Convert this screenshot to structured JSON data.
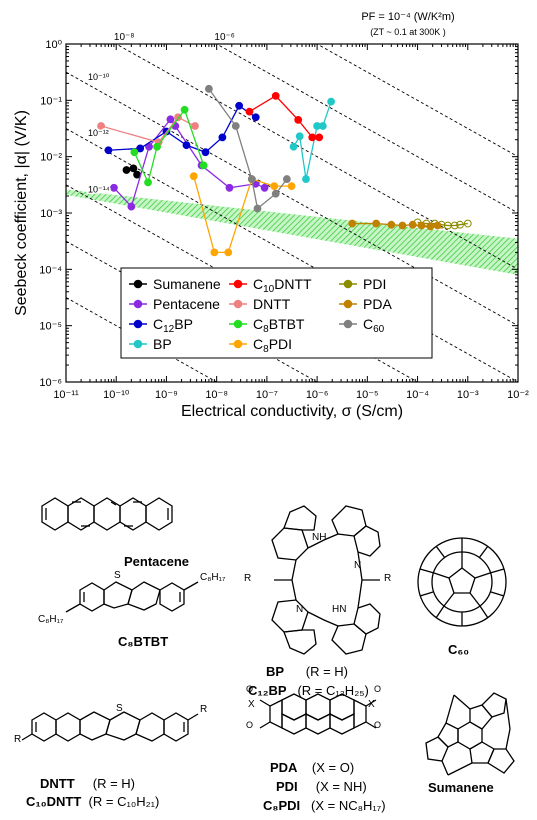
{
  "chart_data": {
    "type": "scatter",
    "xlabel": "Electrical conductivity, σ (S/cm)",
    "ylabel": "Seebeck coefficient, |α| (V/K)",
    "x_scale": "log",
    "y_scale": "log",
    "xlim": [
      1e-11,
      0.01
    ],
    "ylim": [
      1e-06,
      1
    ],
    "x_tick_labels": [
      "10⁻¹¹",
      "10⁻¹⁰",
      "10⁻⁹",
      "10⁻⁸",
      "10⁻⁷",
      "10⁻⁶",
      "10⁻⁵",
      "10⁻⁴",
      "10⁻³",
      "10⁻²"
    ],
    "y_tick_labels": [
      "10⁻⁶",
      "10⁻⁵",
      "10⁻⁴",
      "10⁻³",
      "10⁻²",
      "10⁻¹",
      "10⁰"
    ],
    "top_axis_ticks": [
      {
        "label": "10⁻⁸",
        "x": 1e-10
      },
      {
        "label": "10⁻⁶",
        "x": 1e-08
      }
    ],
    "top_annotation": {
      "line1": "PF = 10⁻⁴ (W/K²m)",
      "line2": "(ZT ~ 0.1 at 300K )"
    },
    "pf_lines": [
      {
        "label": "10⁻¹⁰",
        "pf": 1e-10
      },
      {
        "label": "10⁻¹²",
        "pf": 1e-12
      },
      {
        "label": "10⁻¹⁴",
        "pf": 1e-14
      }
    ],
    "pf_lines_unlabeled": [
      1e-08,
      1e-06,
      0.0001,
      1e-16,
      1e-18
    ],
    "shaded_band": {
      "color": "#55dd55",
      "top": [
        [
          1e-11,
          0.0026
        ],
        [
          0.01,
          0.00035
        ]
      ],
      "bottom": [
        [
          1e-11,
          0.0021
        ],
        [
          0.01,
          8e-05
        ]
      ]
    },
    "legend_position": "lower-center",
    "series": [
      {
        "name": "Sumanene",
        "color": "#000000",
        "x": [
          1.6e-10,
          2.2e-10,
          2.6e-10
        ],
        "y": [
          0.0058,
          0.0062,
          0.0048
        ]
      },
      {
        "name": "Pentacene",
        "color": "#8a2be2",
        "x": [
          9e-11,
          2e-10,
          4.5e-10,
          1.2e-09,
          1.5e-09,
          5e-09,
          1.8e-08,
          6e-08,
          9e-08
        ],
        "y": [
          0.0028,
          0.0013,
          0.015,
          0.046,
          0.035,
          0.007,
          0.0028,
          0.0033,
          0.0028
        ]
      },
      {
        "name": "C12BP",
        "color": "#0000cd",
        "x": [
          7e-11,
          3e-10,
          1e-09,
          2.5e-09,
          6e-09,
          1.3e-08,
          2.8e-08,
          6e-08
        ],
        "y": [
          0.013,
          0.014,
          0.028,
          0.016,
          0.012,
          0.022,
          0.08,
          0.05
        ]
      },
      {
        "name": "BP",
        "color": "#20c8c8",
        "x": [
          3.4e-07,
          4.5e-07,
          6e-07,
          1e-06,
          1.3e-06,
          1.9e-06
        ],
        "y": [
          0.015,
          0.023,
          0.004,
          0.035,
          0.035,
          0.095
        ]
      },
      {
        "name": "C10DNTT",
        "color": "#ff0000",
        "x": [
          4.5e-08,
          1.5e-07,
          4.2e-07,
          8e-07,
          1.1e-06
        ],
        "y": [
          0.063,
          0.12,
          0.045,
          0.022,
          0.022
        ]
      },
      {
        "name": "DNTT",
        "color": "#f08080",
        "x": [
          5e-11,
          7e-10,
          1.7e-09,
          3.7e-09
        ],
        "y": [
          0.035,
          0.018,
          0.05,
          0.035
        ]
      },
      {
        "name": "C8BTBT",
        "color": "#22dd22",
        "x": [
          2.3e-10,
          4.3e-10,
          6.5e-10,
          2.3e-09,
          5.5e-09
        ],
        "y": [
          0.012,
          0.0035,
          0.015,
          0.068,
          0.007
        ]
      },
      {
        "name": "C8PDI",
        "color": "#ffa500",
        "x": [
          3.5e-09,
          9e-09,
          1.7e-08,
          5e-08,
          1.4e-07,
          3.1e-07
        ],
        "y": [
          0.0045,
          0.0002,
          0.0002,
          0.004,
          0.003,
          0.003
        ]
      },
      {
        "name": "PDI",
        "color": "#8b8b00",
        "x": [
          0.0001,
          0.00015,
          0.00022,
          0.0003,
          0.0004,
          0.00055,
          0.0007,
          0.001
        ],
        "y": [
          0.00068,
          0.00065,
          0.00065,
          0.00062,
          0.0006,
          0.0006,
          0.00062,
          0.00065
        ]
      },
      {
        "name": "PDA",
        "color": "#c08000",
        "x": [
          5e-06,
          1.5e-05,
          3e-05,
          5e-05,
          8e-05,
          0.00012,
          0.00018,
          0.00025
        ],
        "y": [
          0.00065,
          0.00065,
          0.00062,
          0.0006,
          0.00062,
          0.0006,
          0.00058,
          0.0006
        ]
      },
      {
        "name": "C60",
        "color": "#808080",
        "x": [
          7e-09,
          2.4e-08,
          5e-08,
          6.5e-08,
          1.5e-07,
          2.5e-07
        ],
        "y": [
          0.16,
          0.035,
          0.004,
          0.0012,
          0.0022,
          0.004
        ]
      }
    ]
  },
  "legend": [
    {
      "main": "Sumanene",
      "sub": "",
      "tail": "",
      "color": "#000000"
    },
    {
      "main": "C",
      "sub": "10",
      "tail": "DNTT",
      "color": "#ff0000"
    },
    {
      "main": "PDI",
      "sub": "",
      "tail": "",
      "color": "#8b8b00"
    },
    {
      "main": "Pentacene",
      "sub": "",
      "tail": "",
      "color": "#8a2be2"
    },
    {
      "main": "DNTT",
      "sub": "",
      "tail": "",
      "color": "#f08080"
    },
    {
      "main": "PDA",
      "sub": "",
      "tail": "",
      "color": "#c08000"
    },
    {
      "main": "C",
      "sub": "12",
      "tail": "BP",
      "color": "#0000cd"
    },
    {
      "main": "C",
      "sub": "8",
      "tail": "BTBT",
      "color": "#22dd22"
    },
    {
      "main": "C",
      "sub": "60",
      "tail": "",
      "color": "#808080"
    },
    {
      "main": "BP",
      "sub": "",
      "tail": "",
      "color": "#20c8c8"
    },
    {
      "main": "C",
      "sub": "8",
      "tail": "PDI",
      "color": "#ffa500"
    }
  ],
  "molecules": {
    "pentacene": "Pentacene",
    "bp_line1_name": "BP",
    "bp_line1_r": "(R = H)",
    "bp_line2_name": "C₁₂BP",
    "bp_line2_r": "(R = C₁₂H₂₅)",
    "bp_nh_top": "NH",
    "bp_n_left": "N",
    "bp_hn": "HN",
    "bp_n_right": "N",
    "bp_r_left": "R",
    "bp_r_right": "R",
    "c60": "C₆₀",
    "c8btbt": "C₈BTBT",
    "c8btbt_left": "C₈H₁₇",
    "c8btbt_right": "C₈H₁₇",
    "s_atom": "S",
    "dntt_line1_name": "DNTT",
    "dntt_line1_r": "(R = H)",
    "dntt_line2_name": "C₁₀DNTT",
    "dntt_line2_r": "(R = C₁₀H₂₁)",
    "dntt_r": "R",
    "pda_line_name": "PDA",
    "pda_line_x": "(X = O)",
    "pdi_line_name": "PDI",
    "pdi_line_x": "(X = NH)",
    "c8pdi_line_name": "C₈PDI",
    "c8pdi_line_x": "(X = NC₈H₁₇)",
    "x_atom": "X",
    "o_atom": "O",
    "sumanene": "Sumanene"
  }
}
